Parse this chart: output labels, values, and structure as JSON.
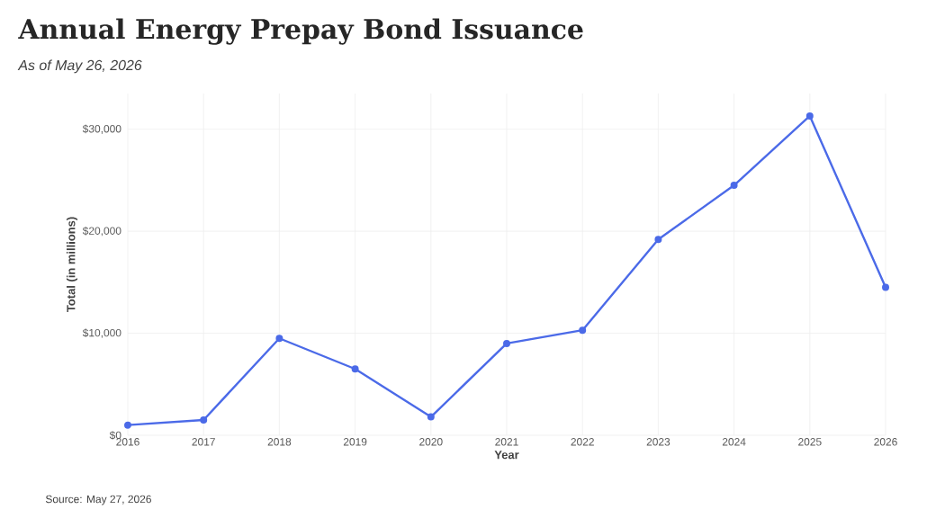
{
  "chart_data": {
    "type": "line",
    "title": "Annual Energy Prepay Bond Issuance",
    "subtitle": "As of May 26, 2026",
    "xlabel": "Year",
    "ylabel": "Total (in millions)",
    "x": [
      2016,
      2017,
      2018,
      2019,
      2020,
      2021,
      2022,
      2023,
      2024,
      2025,
      2026
    ],
    "series": [
      {
        "color": "#4b6ae8",
        "values": [
          1000,
          1500,
          9500,
          6500,
          1800,
          9000,
          10300,
          19200,
          24500,
          31300,
          14500
        ]
      }
    ],
    "xlim": [
      2016,
      2026
    ],
    "xticks": [
      2016,
      2017,
      2018,
      2019,
      2020,
      2021,
      2022,
      2023,
      2024,
      2025,
      2026
    ],
    "ylim": [
      0,
      33500
    ],
    "yticks": [
      {
        "value": 0,
        "label": "$0"
      },
      {
        "value": 10000,
        "label": "$10,000"
      },
      {
        "value": 20000,
        "label": "$20,000"
      },
      {
        "value": 30000,
        "label": "$30,000"
      }
    ],
    "grid": true,
    "marker": "circle",
    "line_style": "solid",
    "annotations": [
      "Source: May 27, 2026"
    ]
  }
}
